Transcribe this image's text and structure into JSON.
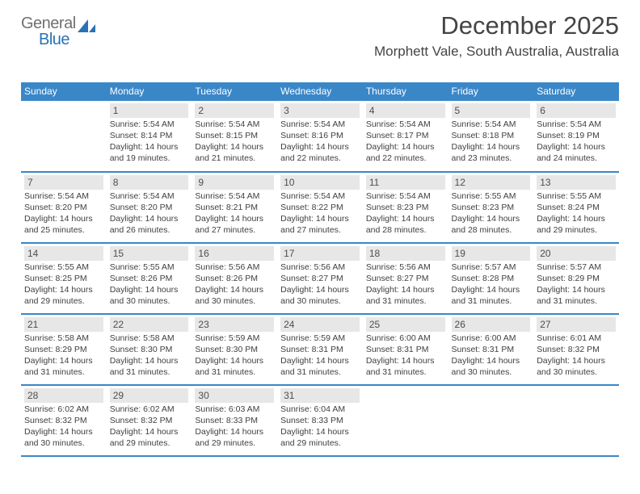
{
  "logo": {
    "gray": "General",
    "blue": "Blue"
  },
  "title": "December 2025",
  "location": "Morphett Vale, South Australia, Australia",
  "colors": {
    "header_bg": "#3a87c8",
    "header_text": "#ffffff",
    "daynum_bg": "#e7e7e7",
    "row_border": "#3a87c8",
    "logo_gray": "#707070",
    "logo_blue": "#2a72b5",
    "body_text": "#404040"
  },
  "weekdays": [
    "Sunday",
    "Monday",
    "Tuesday",
    "Wednesday",
    "Thursday",
    "Friday",
    "Saturday"
  ],
  "weeks": [
    [
      {
        "num": "",
        "sunrise": "",
        "sunset": "",
        "daylight": ""
      },
      {
        "num": "1",
        "sunrise": "5:54 AM",
        "sunset": "8:14 PM",
        "daylight": "14 hours and 19 minutes."
      },
      {
        "num": "2",
        "sunrise": "5:54 AM",
        "sunset": "8:15 PM",
        "daylight": "14 hours and 21 minutes."
      },
      {
        "num": "3",
        "sunrise": "5:54 AM",
        "sunset": "8:16 PM",
        "daylight": "14 hours and 22 minutes."
      },
      {
        "num": "4",
        "sunrise": "5:54 AM",
        "sunset": "8:17 PM",
        "daylight": "14 hours and 22 minutes."
      },
      {
        "num": "5",
        "sunrise": "5:54 AM",
        "sunset": "8:18 PM",
        "daylight": "14 hours and 23 minutes."
      },
      {
        "num": "6",
        "sunrise": "5:54 AM",
        "sunset": "8:19 PM",
        "daylight": "14 hours and 24 minutes."
      }
    ],
    [
      {
        "num": "7",
        "sunrise": "5:54 AM",
        "sunset": "8:20 PM",
        "daylight": "14 hours and 25 minutes."
      },
      {
        "num": "8",
        "sunrise": "5:54 AM",
        "sunset": "8:20 PM",
        "daylight": "14 hours and 26 minutes."
      },
      {
        "num": "9",
        "sunrise": "5:54 AM",
        "sunset": "8:21 PM",
        "daylight": "14 hours and 27 minutes."
      },
      {
        "num": "10",
        "sunrise": "5:54 AM",
        "sunset": "8:22 PM",
        "daylight": "14 hours and 27 minutes."
      },
      {
        "num": "11",
        "sunrise": "5:54 AM",
        "sunset": "8:23 PM",
        "daylight": "14 hours and 28 minutes."
      },
      {
        "num": "12",
        "sunrise": "5:55 AM",
        "sunset": "8:23 PM",
        "daylight": "14 hours and 28 minutes."
      },
      {
        "num": "13",
        "sunrise": "5:55 AM",
        "sunset": "8:24 PM",
        "daylight": "14 hours and 29 minutes."
      }
    ],
    [
      {
        "num": "14",
        "sunrise": "5:55 AM",
        "sunset": "8:25 PM",
        "daylight": "14 hours and 29 minutes."
      },
      {
        "num": "15",
        "sunrise": "5:55 AM",
        "sunset": "8:26 PM",
        "daylight": "14 hours and 30 minutes."
      },
      {
        "num": "16",
        "sunrise": "5:56 AM",
        "sunset": "8:26 PM",
        "daylight": "14 hours and 30 minutes."
      },
      {
        "num": "17",
        "sunrise": "5:56 AM",
        "sunset": "8:27 PM",
        "daylight": "14 hours and 30 minutes."
      },
      {
        "num": "18",
        "sunrise": "5:56 AM",
        "sunset": "8:27 PM",
        "daylight": "14 hours and 31 minutes."
      },
      {
        "num": "19",
        "sunrise": "5:57 AM",
        "sunset": "8:28 PM",
        "daylight": "14 hours and 31 minutes."
      },
      {
        "num": "20",
        "sunrise": "5:57 AM",
        "sunset": "8:29 PM",
        "daylight": "14 hours and 31 minutes."
      }
    ],
    [
      {
        "num": "21",
        "sunrise": "5:58 AM",
        "sunset": "8:29 PM",
        "daylight": "14 hours and 31 minutes."
      },
      {
        "num": "22",
        "sunrise": "5:58 AM",
        "sunset": "8:30 PM",
        "daylight": "14 hours and 31 minutes."
      },
      {
        "num": "23",
        "sunrise": "5:59 AM",
        "sunset": "8:30 PM",
        "daylight": "14 hours and 31 minutes."
      },
      {
        "num": "24",
        "sunrise": "5:59 AM",
        "sunset": "8:31 PM",
        "daylight": "14 hours and 31 minutes."
      },
      {
        "num": "25",
        "sunrise": "6:00 AM",
        "sunset": "8:31 PM",
        "daylight": "14 hours and 31 minutes."
      },
      {
        "num": "26",
        "sunrise": "6:00 AM",
        "sunset": "8:31 PM",
        "daylight": "14 hours and 30 minutes."
      },
      {
        "num": "27",
        "sunrise": "6:01 AM",
        "sunset": "8:32 PM",
        "daylight": "14 hours and 30 minutes."
      }
    ],
    [
      {
        "num": "28",
        "sunrise": "6:02 AM",
        "sunset": "8:32 PM",
        "daylight": "14 hours and 30 minutes."
      },
      {
        "num": "29",
        "sunrise": "6:02 AM",
        "sunset": "8:32 PM",
        "daylight": "14 hours and 29 minutes."
      },
      {
        "num": "30",
        "sunrise": "6:03 AM",
        "sunset": "8:33 PM",
        "daylight": "14 hours and 29 minutes."
      },
      {
        "num": "31",
        "sunrise": "6:04 AM",
        "sunset": "8:33 PM",
        "daylight": "14 hours and 29 minutes."
      },
      {
        "num": "",
        "sunrise": "",
        "sunset": "",
        "daylight": ""
      },
      {
        "num": "",
        "sunrise": "",
        "sunset": "",
        "daylight": ""
      },
      {
        "num": "",
        "sunrise": "",
        "sunset": "",
        "daylight": ""
      }
    ]
  ],
  "labels": {
    "sunrise": "Sunrise: ",
    "sunset": "Sunset: ",
    "daylight": "Daylight: "
  }
}
